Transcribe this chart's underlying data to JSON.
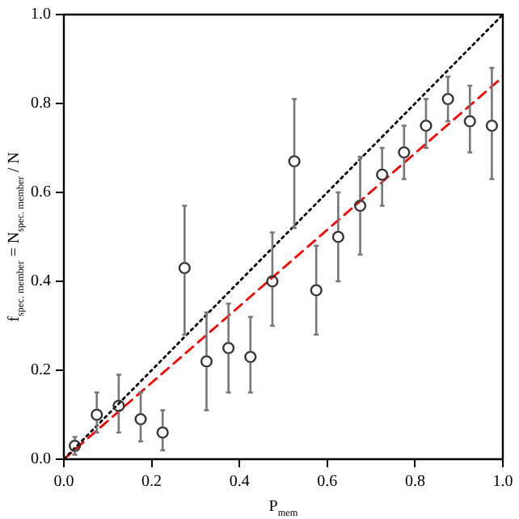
{
  "chart_data": {
    "type": "scatter",
    "xlabel": "P$_{mem}$",
    "ylabel": "f$_{spec. member}$ = N$_{spec. member}$ / N",
    "xlim": [
      0,
      1
    ],
    "ylim": [
      0,
      1
    ],
    "xticks": [
      {
        "value": 0,
        "label": "0.0"
      },
      0.2,
      0.4,
      0.6,
      0.8,
      {
        "value": 1,
        "label": "1.0"
      }
    ],
    "yticks": [
      {
        "value": 0,
        "label": "0.0"
      },
      0.2,
      0.4,
      0.6,
      0.8,
      {
        "value": 1,
        "label": "1.0"
      }
    ],
    "grid": false,
    "legend": false,
    "series": [
      {
        "color": "#333333",
        "marker": "circle",
        "x": [
          0.025,
          0.075,
          0.125,
          0.175,
          0.225,
          0.275,
          0.325,
          0.375,
          0.425,
          0.475,
          0.525,
          0.575,
          0.625,
          0.675,
          0.725,
          0.775,
          0.825,
          0.875,
          0.925,
          0.975
        ],
        "values": [
          0.03,
          0.1,
          0.12,
          0.09,
          0.06,
          0.43,
          0.22,
          0.25,
          0.23,
          0.4,
          0.67,
          0.38,
          0.5,
          0.57,
          0.64,
          0.69,
          0.75,
          0.81,
          0.76,
          0.75
        ],
        "errors": [
          [
            0.01,
            0.05
          ],
          [
            0.06,
            0.15
          ],
          [
            0.06,
            0.19
          ],
          [
            0.04,
            0.15
          ],
          [
            0.02,
            0.11
          ],
          [
            0.28,
            0.57
          ],
          [
            0.11,
            0.33
          ],
          [
            0.15,
            0.35
          ],
          [
            0.15,
            0.32
          ],
          [
            0.3,
            0.51
          ],
          [
            0.52,
            0.81
          ],
          [
            0.28,
            0.48
          ],
          [
            0.4,
            0.6
          ],
          [
            0.46,
            0.68
          ],
          [
            0.57,
            0.7
          ],
          [
            0.63,
            0.75
          ],
          [
            0.7,
            0.81
          ],
          [
            0.76,
            0.86
          ],
          [
            0.69,
            0.84
          ],
          [
            0.63,
            0.88
          ]
        ]
      },
      {
        "type": "line",
        "color": "#000000",
        "marker": "none",
        "line_style": "dotted",
        "x": [
          0,
          1
        ],
        "values": [
          0,
          1
        ]
      },
      {
        "type": "line",
        "color": "#ff0000",
        "marker": "none",
        "line_style": "dashed",
        "x": [
          0,
          1
        ],
        "values": [
          0,
          0.86
        ]
      }
    ]
  }
}
